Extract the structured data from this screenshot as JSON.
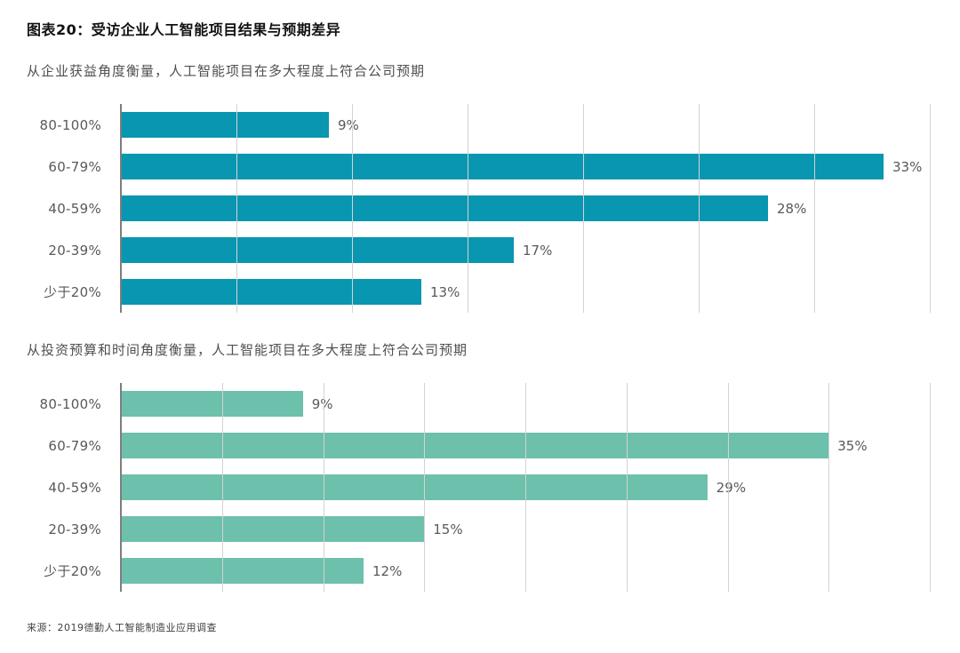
{
  "figure": {
    "title": "图表20：受访企业人工智能项目结果与预期差异"
  },
  "source": "来源：2019德勤人工智能制造业应用调查",
  "colors": {
    "chart1_bar": "#0896B0",
    "chart2_bar": "#6DC0AC",
    "gridline": "#D3D3D3",
    "axis_line": "#7E7E7E",
    "label_text": "#595959"
  },
  "chart_data": [
    {
      "type": "bar",
      "orientation": "horizontal",
      "subtitle": "从企业获益角度衡量，人工智能项目在多大程度上符合公司预期",
      "categories": [
        "80-100%",
        "60-79%",
        "40-59%",
        "20-39%",
        "少于20%"
      ],
      "values": [
        9,
        33,
        28,
        17,
        13
      ],
      "value_labels": [
        "9%",
        "33%",
        "28%",
        "17%",
        "13%"
      ],
      "xlim": [
        0,
        35
      ],
      "gridline_step": 5,
      "grid": "vertical",
      "legend": "none",
      "bar_color": "#0896B0"
    },
    {
      "type": "bar",
      "orientation": "horizontal",
      "subtitle": "从投资预算和时间角度衡量，人工智能项目在多大程度上符合公司预期",
      "categories": [
        "80-100%",
        "60-79%",
        "40-59%",
        "20-39%",
        "少于20%"
      ],
      "values": [
        9,
        35,
        29,
        15,
        12
      ],
      "value_labels": [
        "9%",
        "35%",
        "29%",
        "15%",
        "12%"
      ],
      "xlim": [
        0,
        40
      ],
      "gridline_step": 5,
      "grid": "vertical",
      "legend": "none",
      "bar_color": "#6DC0AC"
    }
  ]
}
